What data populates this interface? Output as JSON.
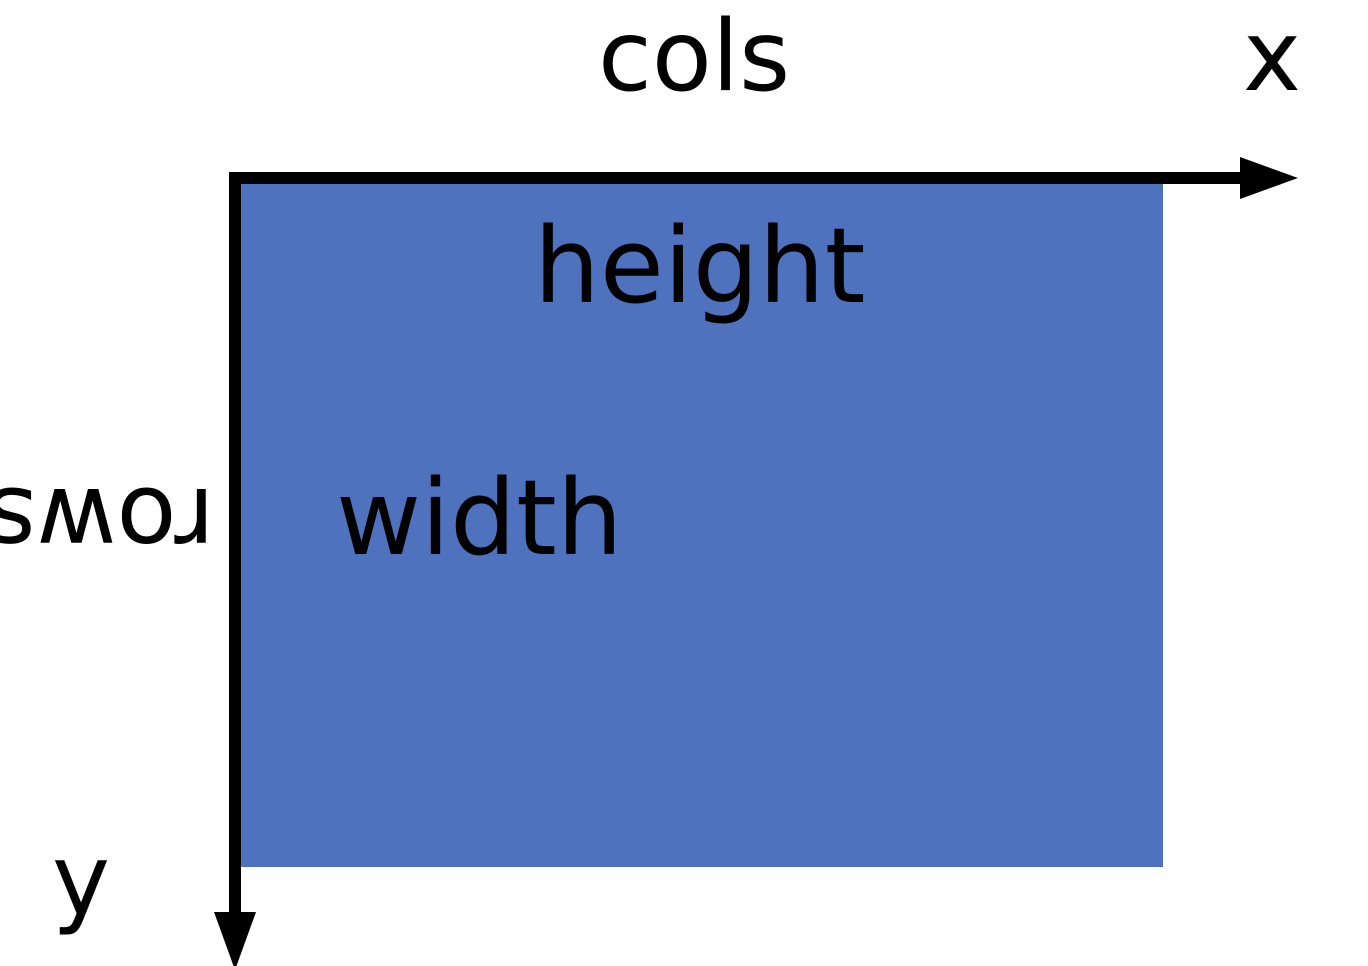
{
  "labels": {
    "top_axis": "cols",
    "x_axis": "x",
    "y_axis": "y",
    "left_axis": "rows",
    "inner_top": "height",
    "inner_middle": "width"
  },
  "colors": {
    "rectangle_fill": "#4F72BE",
    "axis_color": "#000000",
    "background": "#FFFFFF"
  }
}
